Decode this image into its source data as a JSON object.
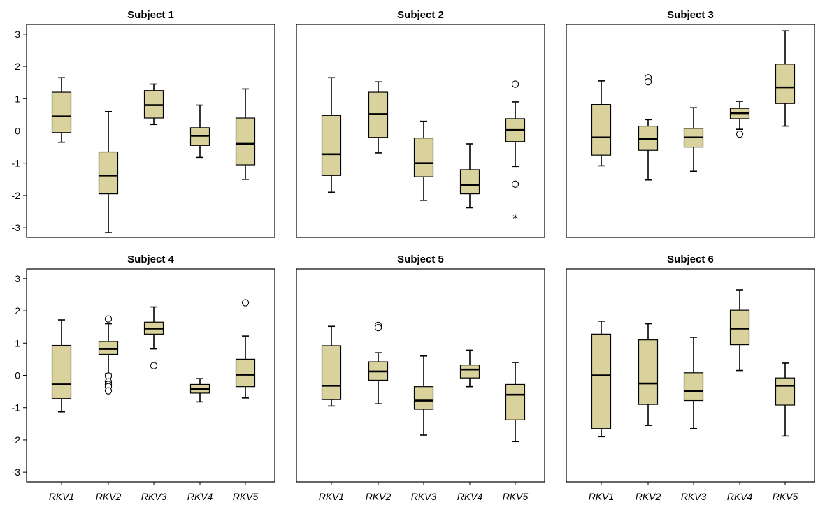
{
  "chart_data": [
    {
      "type": "box",
      "title": "Subject 1",
      "categories": [
        "RKV1",
        "RKV2",
        "RKV3",
        "RKV4",
        "RKV5"
      ],
      "ylim": [
        -3.3,
        3.3
      ],
      "yticks": [
        -3,
        -2,
        -1,
        0,
        1,
        2,
        3
      ],
      "series": [
        {
          "min": -0.35,
          "q1": -0.05,
          "median": 0.45,
          "q3": 1.2,
          "max": 1.65,
          "outliers": [],
          "extremes": []
        },
        {
          "min": -3.15,
          "q1": -1.95,
          "median": -1.38,
          "q3": -0.65,
          "max": 0.6,
          "outliers": [],
          "extremes": []
        },
        {
          "min": 0.2,
          "q1": 0.4,
          "median": 0.8,
          "q3": 1.25,
          "max": 1.45,
          "outliers": [],
          "extremes": []
        },
        {
          "min": -0.82,
          "q1": -0.45,
          "median": -0.15,
          "q3": 0.1,
          "max": 0.8,
          "outliers": [],
          "extremes": []
        },
        {
          "min": -1.5,
          "q1": -1.05,
          "median": -0.4,
          "q3": 0.4,
          "max": 1.3,
          "outliers": [],
          "extremes": []
        }
      ]
    },
    {
      "type": "box",
      "title": "Subject 2",
      "categories": [
        "RKV1",
        "RKV2",
        "RKV3",
        "RKV4",
        "RKV5"
      ],
      "ylim": [
        -3.3,
        3.3
      ],
      "yticks": [
        -3,
        -2,
        -1,
        0,
        1,
        2,
        3
      ],
      "series": [
        {
          "min": -1.9,
          "q1": -1.38,
          "median": -0.72,
          "q3": 0.48,
          "max": 1.65,
          "outliers": [],
          "extremes": []
        },
        {
          "min": -0.68,
          "q1": -0.2,
          "median": 0.52,
          "q3": 1.2,
          "max": 1.52,
          "outliers": [],
          "extremes": []
        },
        {
          "min": -2.15,
          "q1": -1.42,
          "median": -1.0,
          "q3": -0.22,
          "max": 0.3,
          "outliers": [],
          "extremes": []
        },
        {
          "min": -2.38,
          "q1": -1.95,
          "median": -1.68,
          "q3": -1.2,
          "max": -0.4,
          "outliers": [],
          "extremes": []
        },
        {
          "min": -1.1,
          "q1": -0.33,
          "median": 0.03,
          "q3": 0.38,
          "max": 0.9,
          "outliers": [
            1.45,
            -1.65
          ],
          "extremes": [
            -2.65
          ]
        }
      ]
    },
    {
      "type": "box",
      "title": "Subject 3",
      "categories": [
        "RKV1",
        "RKV2",
        "RKV3",
        "RKV4",
        "RKV5"
      ],
      "ylim": [
        -3.3,
        3.3
      ],
      "yticks": [
        -3,
        -2,
        -1,
        0,
        1,
        2,
        3
      ],
      "series": [
        {
          "min": -1.08,
          "q1": -0.75,
          "median": -0.2,
          "q3": 0.82,
          "max": 1.55,
          "outliers": [],
          "extremes": []
        },
        {
          "min": -1.52,
          "q1": -0.6,
          "median": -0.25,
          "q3": 0.15,
          "max": 0.35,
          "outliers": [
            1.65,
            1.52
          ],
          "extremes": []
        },
        {
          "min": -1.25,
          "q1": -0.5,
          "median": -0.2,
          "q3": 0.08,
          "max": 0.72,
          "outliers": [],
          "extremes": []
        },
        {
          "min": 0.05,
          "q1": 0.38,
          "median": 0.55,
          "q3": 0.7,
          "max": 0.92,
          "outliers": [
            -0.1
          ],
          "extremes": []
        },
        {
          "min": 0.15,
          "q1": 0.85,
          "median": 1.35,
          "q3": 2.07,
          "max": 3.1,
          "outliers": [],
          "extremes": []
        }
      ]
    },
    {
      "type": "box",
      "title": "Subject 4",
      "categories": [
        "RKV1",
        "RKV2",
        "RKV3",
        "RKV4",
        "RKV5"
      ],
      "ylim": [
        -3.3,
        3.3
      ],
      "yticks": [
        -3,
        -2,
        -1,
        0,
        1,
        2,
        3
      ],
      "series": [
        {
          "min": -1.13,
          "q1": -0.72,
          "median": -0.28,
          "q3": 0.93,
          "max": 1.72,
          "outliers": [],
          "extremes": []
        },
        {
          "min": 0.05,
          "q1": 0.65,
          "median": 0.82,
          "q3": 1.05,
          "max": 1.6,
          "outliers": [
            1.75,
            -0.02,
            -0.2,
            -0.28,
            -0.35,
            -0.48
          ],
          "extremes": []
        },
        {
          "min": 0.82,
          "q1": 1.28,
          "median": 1.45,
          "q3": 1.65,
          "max": 2.12,
          "outliers": [
            0.3
          ],
          "extremes": []
        },
        {
          "min": -0.82,
          "q1": -0.55,
          "median": -0.42,
          "q3": -0.28,
          "max": -0.1,
          "outliers": [],
          "extremes": []
        },
        {
          "min": -0.7,
          "q1": -0.35,
          "median": 0.02,
          "q3": 0.5,
          "max": 1.22,
          "outliers": [
            2.25
          ],
          "extremes": []
        }
      ]
    },
    {
      "type": "box",
      "title": "Subject 5",
      "categories": [
        "RKV1",
        "RKV2",
        "RKV3",
        "RKV4",
        "RKV5"
      ],
      "ylim": [
        -3.3,
        3.3
      ],
      "yticks": [
        -3,
        -2,
        -1,
        0,
        1,
        2,
        3
      ],
      "series": [
        {
          "min": -0.95,
          "q1": -0.75,
          "median": -0.32,
          "q3": 0.92,
          "max": 1.52,
          "outliers": [],
          "extremes": []
        },
        {
          "min": -0.88,
          "q1": -0.15,
          "median": 0.12,
          "q3": 0.42,
          "max": 0.7,
          "outliers": [
            1.55,
            1.48
          ],
          "extremes": []
        },
        {
          "min": -1.85,
          "q1": -1.05,
          "median": -0.78,
          "q3": -0.35,
          "max": 0.6,
          "outliers": [],
          "extremes": []
        },
        {
          "min": -0.35,
          "q1": -0.08,
          "median": 0.18,
          "q3": 0.32,
          "max": 0.78,
          "outliers": [],
          "extremes": []
        },
        {
          "min": -2.05,
          "q1": -1.38,
          "median": -0.6,
          "q3": -0.28,
          "max": 0.4,
          "outliers": [],
          "extremes": []
        }
      ]
    },
    {
      "type": "box",
      "title": "Subject 6",
      "categories": [
        "RKV1",
        "RKV2",
        "RKV3",
        "RKV4",
        "RKV5"
      ],
      "ylim": [
        -3.3,
        3.3
      ],
      "yticks": [
        -3,
        -2,
        -1,
        0,
        1,
        2,
        3
      ],
      "series": [
        {
          "min": -1.9,
          "q1": -1.65,
          "median": 0.0,
          "q3": 1.28,
          "max": 1.68,
          "outliers": [],
          "extremes": []
        },
        {
          "min": -1.55,
          "q1": -0.9,
          "median": -0.25,
          "q3": 1.1,
          "max": 1.6,
          "outliers": [],
          "extremes": []
        },
        {
          "min": -1.65,
          "q1": -0.78,
          "median": -0.48,
          "q3": 0.08,
          "max": 1.18,
          "outliers": [],
          "extremes": []
        },
        {
          "min": 0.15,
          "q1": 0.95,
          "median": 1.45,
          "q3": 2.02,
          "max": 2.65,
          "outliers": [],
          "extremes": []
        },
        {
          "min": -1.88,
          "q1": -0.92,
          "median": -0.32,
          "q3": -0.08,
          "max": 0.38,
          "outliers": [],
          "extremes": []
        }
      ]
    }
  ],
  "style": {
    "box_fill": "#d9d29c",
    "frame_color": "#000000"
  }
}
